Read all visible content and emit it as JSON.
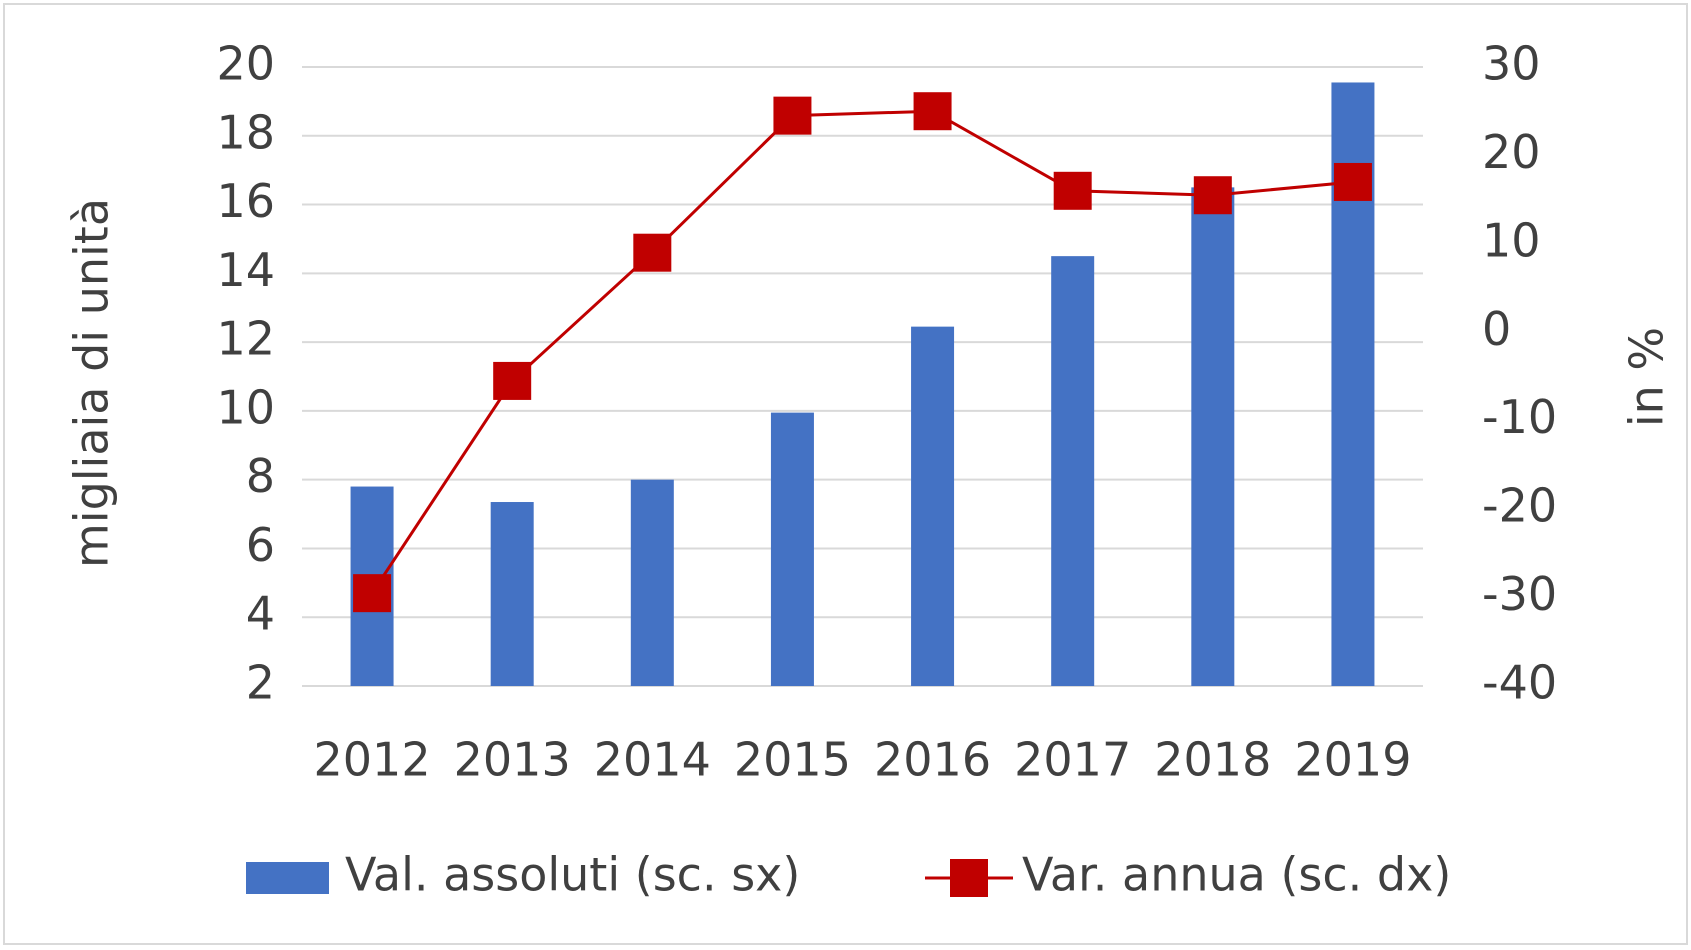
{
  "chart_data": {
    "type": "bar",
    "categories": [
      "2012",
      "2013",
      "2014",
      "2015",
      "2016",
      "2017",
      "2018",
      "2019"
    ],
    "series": [
      {
        "name": "Val. assoluti (sc. sx)",
        "type": "bar",
        "color": "#4472c4",
        "values": [
          7.8,
          7.35,
          8.0,
          9.95,
          12.45,
          14.5,
          16.5,
          19.55
        ]
      },
      {
        "name": "Var. annua (sc. dx)",
        "type": "line",
        "axis": "y2",
        "color": "#c00000",
        "values": [
          -29.5,
          -5.5,
          9,
          24.5,
          25,
          16,
          15.5,
          17
        ]
      }
    ],
    "ylabel": "migliaia di unità",
    "y2label": "in %",
    "ylim": [
      2,
      20
    ],
    "yticks": [
      2,
      4,
      6,
      8,
      10,
      12,
      14,
      16,
      18,
      20
    ],
    "y2lim": [
      -40,
      30
    ],
    "y2ticks": [
      -40,
      -30,
      -20,
      -10,
      0,
      10,
      20,
      30
    ],
    "grid": true,
    "legend": "bottom"
  }
}
